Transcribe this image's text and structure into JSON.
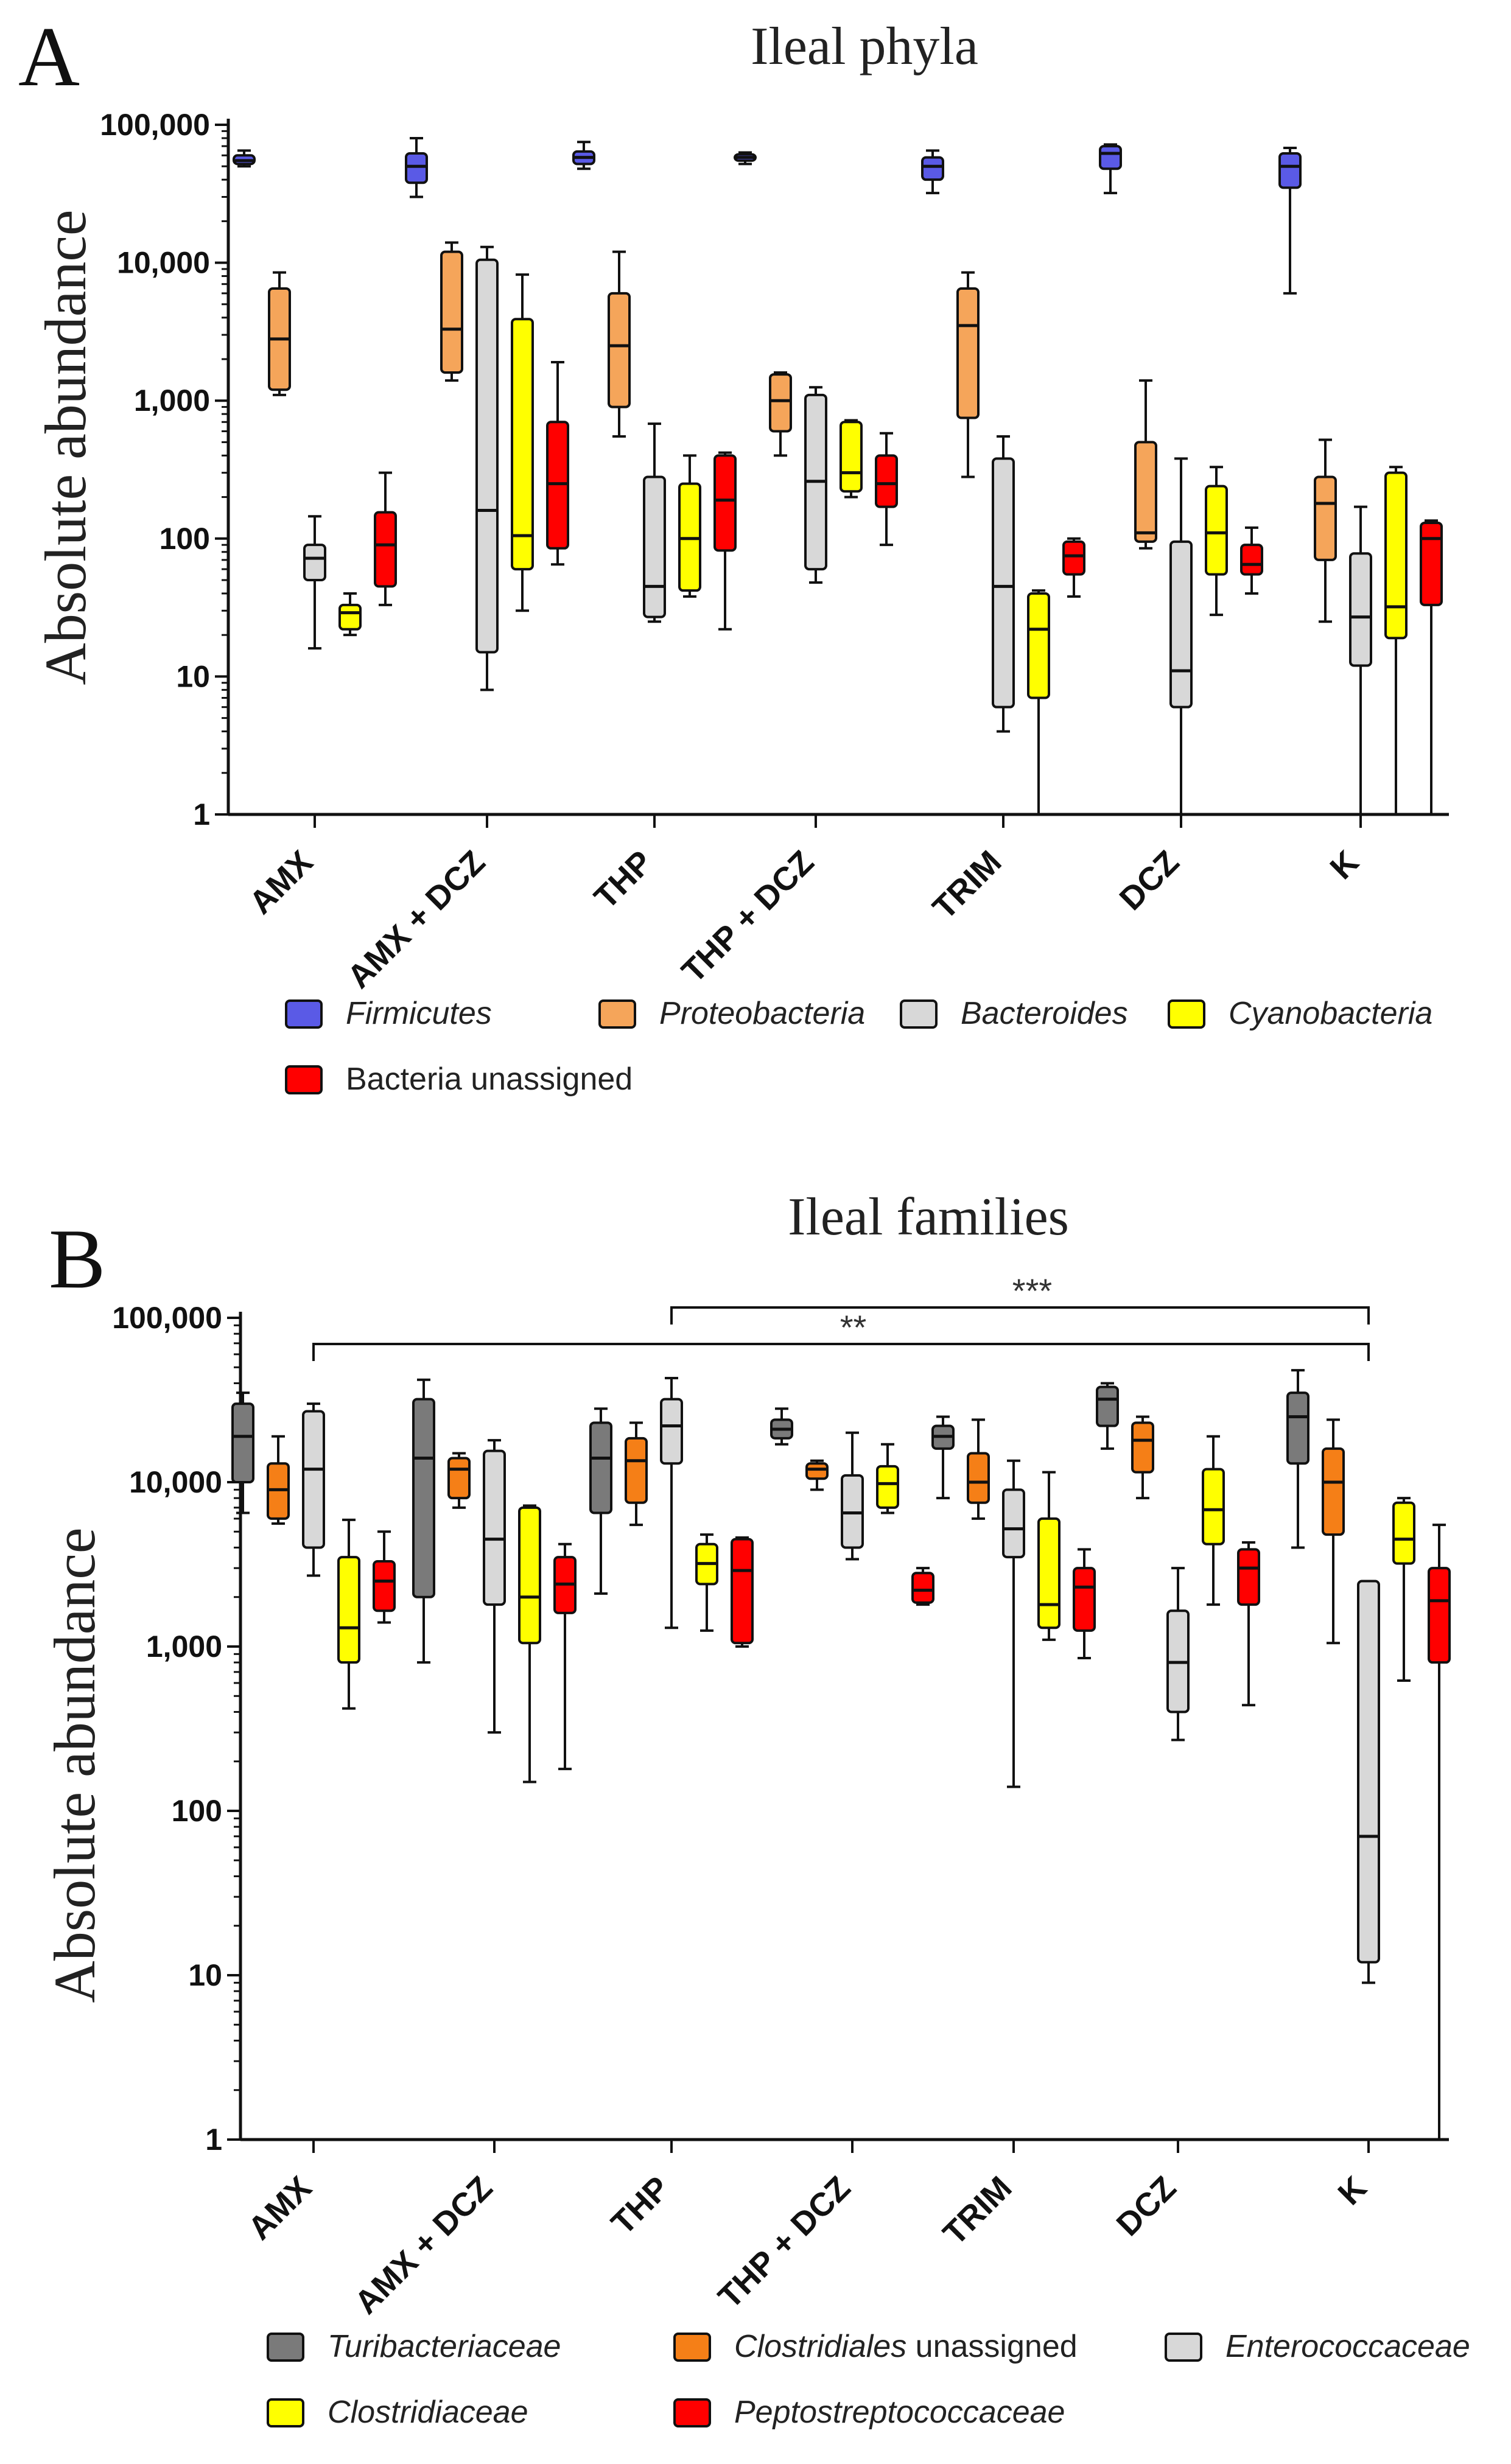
{
  "chart_data": [
    {
      "type": "box",
      "panel_label": "A",
      "title": "Ileal phyla",
      "ylabel": "Absolute abundance",
      "yscale": "log",
      "ylim": [
        1,
        100000
      ],
      "y_ticks": [
        1,
        10,
        100,
        1000,
        10000,
        100000
      ],
      "y_tick_labels": [
        "1",
        "10",
        "100",
        "1,000",
        "10,000",
        "100,000"
      ],
      "categories": [
        "AMX",
        "AMX + DCZ",
        "THP",
        "THP + DCZ",
        "TRIM",
        "DCZ",
        "K"
      ],
      "legend": [
        "Firmicutes",
        "Proteobacteria",
        "Bacteroides",
        "Cyanobacteria",
        "Bacteria unassigned"
      ],
      "legend_italic": [
        true,
        true,
        true,
        true,
        false
      ],
      "legend_position": "bottom",
      "brackets": [],
      "series": [
        {
          "name": "Firmicutes",
          "color": "#5a5ae6",
          "boxes": [
            [
              50000,
              52000,
              55000,
              60000,
              65000
            ],
            [
              30000,
              38000,
              50000,
              62000,
              80000
            ],
            [
              48000,
              52000,
              58000,
              64000,
              75000
            ],
            [
              52000,
              55000,
              58000,
              61000,
              63000
            ],
            [
              32000,
              40000,
              50000,
              58000,
              65000
            ],
            [
              32000,
              48000,
              62000,
              70000,
              72000
            ],
            [
              6000,
              35000,
              50000,
              62000,
              68000
            ]
          ]
        },
        {
          "name": "Proteobacteria",
          "color": "#f5a55a",
          "boxes": [
            [
              1100,
              1200,
              2800,
              6500,
              8500
            ],
            [
              1400,
              1600,
              3300,
              12000,
              14000
            ],
            [
              550,
              900,
              2500,
              6000,
              12000
            ],
            [
              400,
              600,
              1000,
              1550,
              1600
            ],
            [
              280,
              750,
              3500,
              6500,
              8500
            ],
            [
              85,
              95,
              110,
              500,
              1400
            ],
            [
              25,
              70,
              180,
              280,
              520
            ]
          ]
        },
        {
          "name": "Bacteroides",
          "color": "#d8d8d8",
          "boxes": [
            [
              16,
              50,
              72,
              90,
              145
            ],
            [
              8,
              15,
              160,
              10500,
              13000
            ],
            [
              25,
              27,
              45,
              280,
              680
            ],
            [
              48,
              60,
              260,
              1100,
              1250
            ],
            [
              4,
              6,
              45,
              380,
              550
            ],
            [
              1,
              6,
              11,
              95,
              380
            ],
            [
              1,
              12,
              27,
              78,
              170
            ]
          ]
        },
        {
          "name": "Cyanobacteria",
          "color": "#ffff00",
          "boxes": [
            [
              20,
              22,
              29,
              33,
              40
            ],
            [
              30,
              60,
              105,
              3900,
              8200
            ],
            [
              38,
              42,
              100,
              250,
              400
            ],
            [
              200,
              220,
              300,
              700,
              720
            ],
            [
              1,
              7,
              22,
              40,
              42
            ],
            [
              28,
              55,
              110,
              240,
              330
            ],
            [
              1,
              19,
              32,
              300,
              330
            ]
          ]
        },
        {
          "name": "Bacteria unassigned",
          "color": "#ff0000",
          "boxes": [
            [
              33,
              45,
              90,
              155,
              300
            ],
            [
              65,
              85,
              250,
              700,
              1900
            ],
            [
              22,
              82,
              190,
              400,
              420
            ],
            [
              90,
              170,
              250,
              400,
              580
            ],
            [
              38,
              55,
              75,
              95,
              100
            ],
            [
              40,
              55,
              65,
              90,
              120
            ],
            [
              1,
              33,
              100,
              130,
              135
            ]
          ]
        }
      ]
    },
    {
      "type": "box",
      "panel_label": "B",
      "title": "Ileal families",
      "ylabel": "Absolute abundance",
      "yscale": "log",
      "ylim": [
        1,
        100000
      ],
      "y_ticks": [
        1,
        10,
        100,
        1000,
        10000,
        100000
      ],
      "y_tick_labels": [
        "1",
        "10",
        "100",
        "1,000",
        "10,000",
        "100,000"
      ],
      "categories": [
        "AMX",
        "AMX + DCZ",
        "THP",
        "THP + DCZ",
        "TRIM",
        "DCZ",
        "K"
      ],
      "legend": [
        "Turibacteriaceae",
        "Clostridiales unassigned",
        "Enterococcaceae",
        "Clostridiaceae",
        "Peptostreptococcaceae"
      ],
      "legend_italic_parts": [
        [
          "Turibacteriaceae",
          ""
        ],
        [
          "Clostridiales",
          " unassigned"
        ],
        [
          "Enterococcaceae",
          ""
        ],
        [
          "Clostridiaceae",
          ""
        ],
        [
          "Peptostreptococcaceae",
          ""
        ]
      ],
      "legend_position": "bottom",
      "brackets": [
        {
          "label": "***",
          "from": "THP",
          "to": "K"
        },
        {
          "label": "**",
          "from": "AMX",
          "to": "K"
        }
      ],
      "series": [
        {
          "name": "Turibacteriaceae",
          "color": "#7a7a7a",
          "boxes": [
            [
              6500,
              10000,
              19000,
              30000,
              35000
            ],
            [
              800,
              2000,
              14000,
              32000,
              42000
            ],
            [
              2100,
              6500,
              14000,
              23000,
              28000
            ],
            [
              17000,
              18500,
              21000,
              24000,
              28000
            ],
            [
              8000,
              16000,
              19000,
              22000,
              25000
            ],
            [
              16000,
              22000,
              32000,
              38000,
              40000
            ],
            [
              4000,
              13000,
              25000,
              35000,
              48000
            ]
          ]
        },
        {
          "name": "Clostridiales unassigned",
          "color": "#f57f17",
          "boxes": [
            [
              5600,
              6000,
              9000,
              13000,
              19000
            ],
            [
              7000,
              8000,
              12000,
              14000,
              15000
            ],
            [
              5500,
              7500,
              13500,
              18500,
              23000
            ],
            [
              9000,
              10500,
              12000,
              13000,
              13500
            ],
            [
              6000,
              7500,
              10000,
              15000,
              24000
            ],
            [
              8000,
              11500,
              18000,
              23000,
              25000
            ],
            [
              1050,
              4800,
              10000,
              16000,
              24000
            ]
          ]
        },
        {
          "name": "Enterococcaceae",
          "color": "#d8d8d8",
          "boxes": [
            [
              2700,
              4000,
              12000,
              27000,
              30000
            ],
            [
              300,
              1800,
              4500,
              15500,
              18000
            ],
            [
              1300,
              13000,
              22000,
              32000,
              43000
            ],
            [
              3400,
              4000,
              6500,
              11000,
              20000
            ],
            [
              140,
              3500,
              5200,
              9000,
              13500
            ],
            [
              270,
              400,
              800,
              1650,
              3000
            ],
            [
              9,
              12,
              70,
              2500,
              2500
            ]
          ]
        },
        {
          "name": "Clostridiaceae",
          "color": "#ffff00",
          "boxes": [
            [
              420,
              800,
              1300,
              3500,
              5900
            ],
            [
              150,
              1050,
              2000,
              7000,
              7200
            ],
            [
              1250,
              2400,
              3200,
              4200,
              4800
            ],
            [
              6500,
              7000,
              9800,
              12500,
              17000
            ],
            [
              1100,
              1300,
              1800,
              6000,
              11500
            ],
            [
              1800,
              4200,
              6800,
              12000,
              19000
            ],
            [
              620,
              3200,
              4500,
              7500,
              8000
            ]
          ]
        },
        {
          "name": "Peptostreptococcaceae",
          "color": "#ff0000",
          "boxes": [
            [
              1400,
              1650,
              2500,
              3300,
              5000
            ],
            [
              180,
              1600,
              2400,
              3500,
              4200
            ],
            [
              1000,
              1050,
              2900,
              4500,
              4600
            ],
            [
              1800,
              1850,
              2200,
              2800,
              3000
            ],
            [
              850,
              1250,
              2300,
              3000,
              3900
            ],
            [
              440,
              1800,
              3000,
              3900,
              4300
            ],
            [
              1,
              800,
              1900,
              3000,
              5500
            ]
          ]
        }
      ]
    }
  ]
}
